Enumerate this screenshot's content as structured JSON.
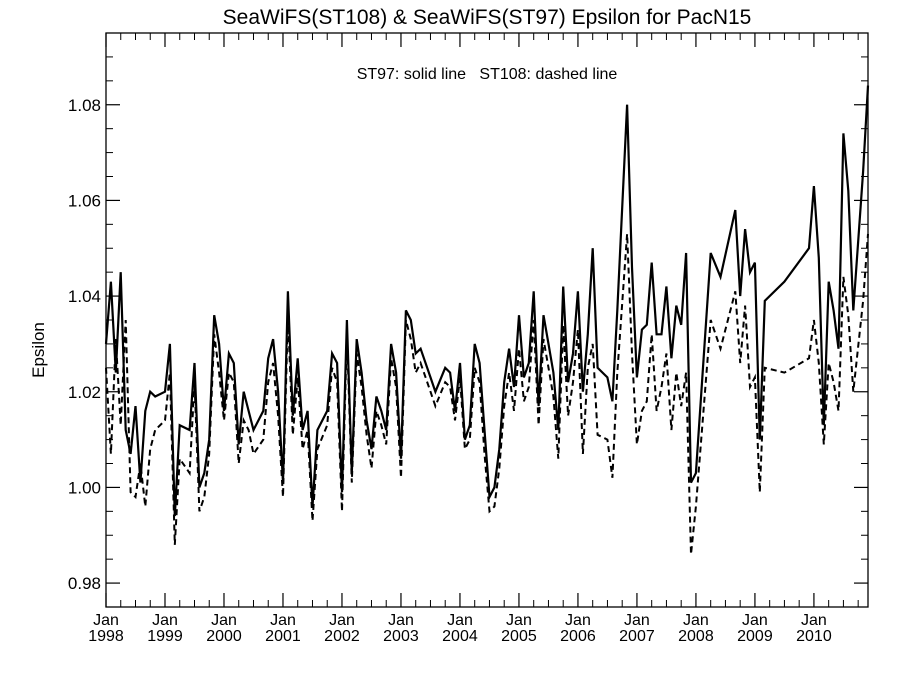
{
  "chart_data": {
    "type": "line",
    "title": "SeaWiFS(ST108) & SeaWiFS(ST97)  Epsilon for PacN15",
    "annotation": "ST97: solid line   ST108: dashed line",
    "xlabel": "",
    "ylabel": "Epsilon",
    "xlim": [
      "1998-01",
      "2010-12"
    ],
    "ylim": [
      0.975,
      1.095
    ],
    "y_ticks": [
      0.98,
      1.0,
      1.02,
      1.04,
      1.06,
      1.08
    ],
    "y_tick_labels": [
      "0.98",
      "1.00",
      "1.02",
      "1.04",
      "1.06",
      "1.08"
    ],
    "x_ticks": [
      "1998-01",
      "1999-01",
      "2000-01",
      "2001-01",
      "2002-01",
      "2003-01",
      "2004-01",
      "2005-01",
      "2006-01",
      "2007-01",
      "2008-01",
      "2009-01",
      "2010-01"
    ],
    "x_tick_month": "Jan",
    "x_tick_years": [
      "1998",
      "1999",
      "2000",
      "2001",
      "2002",
      "2003",
      "2004",
      "2005",
      "2006",
      "2007",
      "2008",
      "2009",
      "2010"
    ],
    "grid": false,
    "series": [
      {
        "name": "ST97",
        "style": "solid",
        "points": [
          [
            "1998-01",
            1.03
          ],
          [
            "1998-02",
            1.043
          ],
          [
            "1998-03",
            1.024
          ],
          [
            "1998-04",
            1.045
          ],
          [
            "1998-05",
            1.012
          ],
          [
            "1998-06",
            1.007
          ],
          [
            "1998-07",
            1.017
          ],
          [
            "1998-08",
            1.001
          ],
          [
            "1998-09",
            1.016
          ],
          [
            "1998-10",
            1.02
          ],
          [
            "1998-11",
            1.019
          ],
          [
            "1999-01",
            1.02
          ],
          [
            "1999-02",
            1.03
          ],
          [
            "1999-03",
            0.994
          ],
          [
            "1999-04",
            1.013
          ],
          [
            "1999-06",
            1.012
          ],
          [
            "1999-07",
            1.026
          ],
          [
            "1999-08",
            1.0
          ],
          [
            "1999-09",
            1.003
          ],
          [
            "1999-10",
            1.01
          ],
          [
            "1999-11",
            1.036
          ],
          [
            "1999-12",
            1.03
          ],
          [
            "2000-01",
            1.016
          ],
          [
            "2000-02",
            1.028
          ],
          [
            "2000-03",
            1.026
          ],
          [
            "2000-04",
            1.009
          ],
          [
            "2000-05",
            1.02
          ],
          [
            "2000-06",
            1.016
          ],
          [
            "2000-07",
            1.012
          ],
          [
            "2000-09",
            1.016
          ],
          [
            "2000-10",
            1.027
          ],
          [
            "2000-11",
            1.031
          ],
          [
            "2000-12",
            1.02
          ],
          [
            "2001-01",
            1.001
          ],
          [
            "2001-02",
            1.041
          ],
          [
            "2001-03",
            1.015
          ],
          [
            "2001-04",
            1.027
          ],
          [
            "2001-05",
            1.012
          ],
          [
            "2001-06",
            1.016
          ],
          [
            "2001-07",
            0.996
          ],
          [
            "2001-08",
            1.012
          ],
          [
            "2001-10",
            1.016
          ],
          [
            "2001-11",
            1.028
          ],
          [
            "2001-12",
            1.026
          ],
          [
            "2002-01",
            0.999
          ],
          [
            "2002-02",
            1.035
          ],
          [
            "2002-03",
            1.003
          ],
          [
            "2002-04",
            1.031
          ],
          [
            "2002-05",
            1.024
          ],
          [
            "2002-06",
            1.014
          ],
          [
            "2002-07",
            1.008
          ],
          [
            "2002-08",
            1.019
          ],
          [
            "2002-09",
            1.016
          ],
          [
            "2002-10",
            1.012
          ],
          [
            "2002-11",
            1.03
          ],
          [
            "2002-12",
            1.024
          ],
          [
            "2003-01",
            1.006
          ],
          [
            "2003-02",
            1.037
          ],
          [
            "2003-03",
            1.035
          ],
          [
            "2003-04",
            1.028
          ],
          [
            "2003-05",
            1.029
          ],
          [
            "2003-07",
            1.023
          ],
          [
            "2003-08",
            1.02
          ],
          [
            "2003-10",
            1.025
          ],
          [
            "2003-11",
            1.024
          ],
          [
            "2003-12",
            1.016
          ],
          [
            "2004-01",
            1.026
          ],
          [
            "2004-02",
            1.01
          ],
          [
            "2004-03",
            1.013
          ],
          [
            "2004-04",
            1.03
          ],
          [
            "2004-05",
            1.026
          ],
          [
            "2004-06",
            1.012
          ],
          [
            "2004-07",
            0.998
          ],
          [
            "2004-08",
            1.0
          ],
          [
            "2004-09",
            1.008
          ],
          [
            "2004-10",
            1.022
          ],
          [
            "2004-11",
            1.029
          ],
          [
            "2004-12",
            1.021
          ],
          [
            "2005-01",
            1.036
          ],
          [
            "2005-02",
            1.023
          ],
          [
            "2005-03",
            1.026
          ],
          [
            "2005-04",
            1.041
          ],
          [
            "2005-05",
            1.017
          ],
          [
            "2005-06",
            1.036
          ],
          [
            "2005-07",
            1.03
          ],
          [
            "2005-08",
            1.024
          ],
          [
            "2005-09",
            1.012
          ],
          [
            "2005-10",
            1.042
          ],
          [
            "2005-11",
            1.022
          ],
          [
            "2005-12",
            1.028
          ],
          [
            "2006-01",
            1.041
          ],
          [
            "2006-02",
            1.02
          ],
          [
            "2006-03",
            1.032
          ],
          [
            "2006-04",
            1.05
          ],
          [
            "2006-05",
            1.025
          ],
          [
            "2006-07",
            1.023
          ],
          [
            "2006-08",
            1.018
          ],
          [
            "2006-09",
            1.037
          ],
          [
            "2006-11",
            1.08
          ],
          [
            "2006-12",
            1.046
          ],
          [
            "2007-01",
            1.023
          ],
          [
            "2007-02",
            1.033
          ],
          [
            "2007-03",
            1.034
          ],
          [
            "2007-04",
            1.047
          ],
          [
            "2007-05",
            1.032
          ],
          [
            "2007-06",
            1.032
          ],
          [
            "2007-07",
            1.042
          ],
          [
            "2007-08",
            1.027
          ],
          [
            "2007-09",
            1.038
          ],
          [
            "2007-10",
            1.034
          ],
          [
            "2007-11",
            1.049
          ],
          [
            "2007-12",
            1.001
          ],
          [
            "2008-01",
            1.003
          ],
          [
            "2008-04",
            1.049
          ],
          [
            "2008-06",
            1.044
          ],
          [
            "2008-09",
            1.058
          ],
          [
            "2008-10",
            1.04
          ],
          [
            "2008-11",
            1.054
          ],
          [
            "2008-12",
            1.045
          ],
          [
            "2009-01",
            1.047
          ],
          [
            "2009-02",
            1.01
          ],
          [
            "2009-03",
            1.039
          ],
          [
            "2009-07",
            1.043
          ],
          [
            "2009-12",
            1.05
          ],
          [
            "2010-01",
            1.063
          ],
          [
            "2010-02",
            1.048
          ],
          [
            "2010-03",
            1.013
          ],
          [
            "2010-04",
            1.043
          ],
          [
            "2010-05",
            1.037
          ],
          [
            "2010-06",
            1.029
          ],
          [
            "2010-07",
            1.074
          ],
          [
            "2010-08",
            1.062
          ],
          [
            "2010-09",
            1.037
          ],
          [
            "2010-11",
            1.066
          ],
          [
            "2010-12",
            1.084
          ]
        ]
      },
      {
        "name": "ST108",
        "style": "dashed",
        "points": [
          [
            "1998-01",
            1.025
          ],
          [
            "1998-02",
            1.007
          ],
          [
            "1998-03",
            1.031
          ],
          [
            "1998-04",
            1.013
          ],
          [
            "1998-05",
            1.035
          ],
          [
            "1998-06",
            0.999
          ],
          [
            "1998-07",
            0.998
          ],
          [
            "1998-08",
            1.005
          ],
          [
            "1998-09",
            0.996
          ],
          [
            "1998-10",
            1.008
          ],
          [
            "1998-11",
            1.012
          ],
          [
            "1999-01",
            1.014
          ],
          [
            "1999-02",
            1.024
          ],
          [
            "1999-03",
            0.988
          ],
          [
            "1999-04",
            1.006
          ],
          [
            "1999-06",
            1.003
          ],
          [
            "1999-07",
            1.022
          ],
          [
            "1999-08",
            0.995
          ],
          [
            "1999-09",
            0.998
          ],
          [
            "1999-10",
            1.007
          ],
          [
            "1999-11",
            1.032
          ],
          [
            "1999-12",
            1.024
          ],
          [
            "2000-01",
            1.014
          ],
          [
            "2000-02",
            1.024
          ],
          [
            "2000-03",
            1.022
          ],
          [
            "2000-04",
            1.005
          ],
          [
            "2000-05",
            1.014
          ],
          [
            "2000-06",
            1.012
          ],
          [
            "2000-07",
            1.007
          ],
          [
            "2000-09",
            1.01
          ],
          [
            "2000-10",
            1.022
          ],
          [
            "2000-11",
            1.026
          ],
          [
            "2000-12",
            1.015
          ],
          [
            "2001-01",
            0.998
          ],
          [
            "2001-02",
            1.036
          ],
          [
            "2001-03",
            1.011
          ],
          [
            "2001-04",
            1.023
          ],
          [
            "2001-05",
            1.008
          ],
          [
            "2001-06",
            1.012
          ],
          [
            "2001-07",
            0.993
          ],
          [
            "2001-08",
            1.008
          ],
          [
            "2001-10",
            1.013
          ],
          [
            "2001-11",
            1.025
          ],
          [
            "2001-12",
            1.022
          ],
          [
            "2002-01",
            0.995
          ],
          [
            "2002-02",
            1.032
          ],
          [
            "2002-03",
            1.001
          ],
          [
            "2002-04",
            1.028
          ],
          [
            "2002-05",
            1.021
          ],
          [
            "2002-06",
            1.011
          ],
          [
            "2002-07",
            1.004
          ],
          [
            "2002-08",
            1.016
          ],
          [
            "2002-09",
            1.013
          ],
          [
            "2002-10",
            1.009
          ],
          [
            "2002-11",
            1.027
          ],
          [
            "2002-12",
            1.021
          ],
          [
            "2003-01",
            1.002
          ],
          [
            "2003-02",
            1.035
          ],
          [
            "2003-03",
            1.031
          ],
          [
            "2003-04",
            1.024
          ],
          [
            "2003-05",
            1.026
          ],
          [
            "2003-07",
            1.02
          ],
          [
            "2003-08",
            1.017
          ],
          [
            "2003-10",
            1.022
          ],
          [
            "2003-11",
            1.021
          ],
          [
            "2003-12",
            1.014
          ],
          [
            "2004-01",
            1.023
          ],
          [
            "2004-02",
            1.008
          ],
          [
            "2004-03",
            1.01
          ],
          [
            "2004-04",
            1.025
          ],
          [
            "2004-05",
            1.022
          ],
          [
            "2004-06",
            1.007
          ],
          [
            "2004-07",
            0.995
          ],
          [
            "2004-08",
            0.996
          ],
          [
            "2004-09",
            1.004
          ],
          [
            "2004-10",
            1.017
          ],
          [
            "2004-11",
            1.024
          ],
          [
            "2004-12",
            1.016
          ],
          [
            "2005-01",
            1.029
          ],
          [
            "2005-02",
            1.018
          ],
          [
            "2005-03",
            1.021
          ],
          [
            "2005-04",
            1.035
          ],
          [
            "2005-05",
            1.013
          ],
          [
            "2005-06",
            1.031
          ],
          [
            "2005-07",
            1.025
          ],
          [
            "2005-08",
            1.019
          ],
          [
            "2005-09",
            1.006
          ],
          [
            "2005-10",
            1.034
          ],
          [
            "2005-11",
            1.015
          ],
          [
            "2005-12",
            1.022
          ],
          [
            "2006-01",
            1.033
          ],
          [
            "2006-02",
            1.007
          ],
          [
            "2006-03",
            1.025
          ],
          [
            "2006-04",
            1.03
          ],
          [
            "2006-05",
            1.011
          ],
          [
            "2006-07",
            1.01
          ],
          [
            "2006-08",
            1.002
          ],
          [
            "2006-09",
            1.024
          ],
          [
            "2006-11",
            1.053
          ],
          [
            "2006-12",
            1.028
          ],
          [
            "2007-01",
            1.009
          ],
          [
            "2007-02",
            1.016
          ],
          [
            "2007-03",
            1.018
          ],
          [
            "2007-04",
            1.032
          ],
          [
            "2007-05",
            1.016
          ],
          [
            "2007-06",
            1.021
          ],
          [
            "2007-07",
            1.028
          ],
          [
            "2007-08",
            1.012
          ],
          [
            "2007-09",
            1.024
          ],
          [
            "2007-10",
            1.017
          ],
          [
            "2007-11",
            1.024
          ],
          [
            "2007-12",
            0.986
          ],
          [
            "2008-01",
            0.996
          ],
          [
            "2008-04",
            1.035
          ],
          [
            "2008-06",
            1.029
          ],
          [
            "2008-09",
            1.041
          ],
          [
            "2008-10",
            1.026
          ],
          [
            "2008-11",
            1.038
          ],
          [
            "2008-12",
            1.021
          ],
          [
            "2009-01",
            1.023
          ],
          [
            "2009-02",
            0.999
          ],
          [
            "2009-03",
            1.025
          ],
          [
            "2009-07",
            1.024
          ],
          [
            "2009-12",
            1.027
          ],
          [
            "2010-01",
            1.035
          ],
          [
            "2010-02",
            1.026
          ],
          [
            "2010-03",
            1.009
          ],
          [
            "2010-04",
            1.026
          ],
          [
            "2010-05",
            1.022
          ],
          [
            "2010-06",
            1.016
          ],
          [
            "2010-07",
            1.044
          ],
          [
            "2010-08",
            1.036
          ],
          [
            "2010-09",
            1.02
          ],
          [
            "2010-11",
            1.039
          ],
          [
            "2010-12",
            1.053
          ]
        ]
      }
    ]
  }
}
